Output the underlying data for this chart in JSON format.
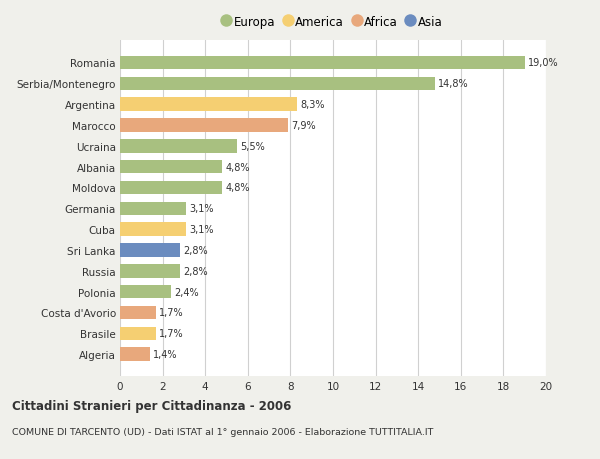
{
  "countries": [
    "Romania",
    "Serbia/Montenegro",
    "Argentina",
    "Marocco",
    "Ucraina",
    "Albania",
    "Moldova",
    "Germania",
    "Cuba",
    "Sri Lanka",
    "Russia",
    "Polonia",
    "Costa d'Avorio",
    "Brasile",
    "Algeria"
  ],
  "values": [
    19.0,
    14.8,
    8.3,
    7.9,
    5.5,
    4.8,
    4.8,
    3.1,
    3.1,
    2.8,
    2.8,
    2.4,
    1.7,
    1.7,
    1.4
  ],
  "labels": [
    "19,0%",
    "14,8%",
    "8,3%",
    "7,9%",
    "5,5%",
    "4,8%",
    "4,8%",
    "3,1%",
    "3,1%",
    "2,8%",
    "2,8%",
    "2,4%",
    "1,7%",
    "1,7%",
    "1,4%"
  ],
  "continents": [
    "Europa",
    "Europa",
    "America",
    "Africa",
    "Europa",
    "Europa",
    "Europa",
    "Europa",
    "America",
    "Asia",
    "Europa",
    "Europa",
    "Africa",
    "America",
    "Africa"
  ],
  "colors": {
    "Europa": "#a8c080",
    "America": "#f5cf72",
    "Africa": "#e8a87c",
    "Asia": "#6b8cbf"
  },
  "title_bold": "Cittadini Stranieri per Cittadinanza - 2006",
  "subtitle": "COMUNE DI TARCENTO (UD) - Dati ISTAT al 1° gennaio 2006 - Elaborazione TUTTITALIA.IT",
  "xlim": [
    0,
    20
  ],
  "xticks": [
    0,
    2,
    4,
    6,
    8,
    10,
    12,
    14,
    16,
    18,
    20
  ],
  "background_color": "#f0f0eb",
  "bar_background": "#ffffff",
  "grid_color": "#d0d0d0",
  "text_color": "#333333",
  "legend_order": [
    "Europa",
    "America",
    "Africa",
    "Asia"
  ]
}
